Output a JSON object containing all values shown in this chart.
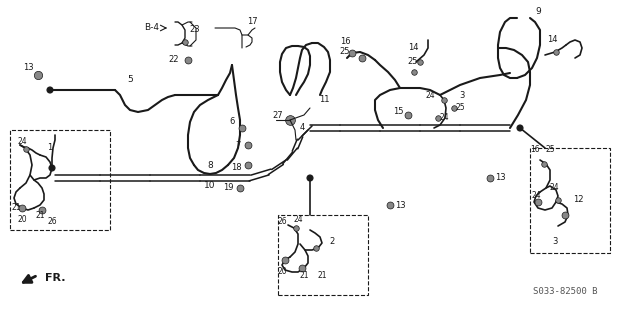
{
  "part_number": "S033-82500 B",
  "bg_color": "#ffffff",
  "line_color": "#1a1a1a",
  "fig_width": 6.4,
  "fig_height": 3.19
}
